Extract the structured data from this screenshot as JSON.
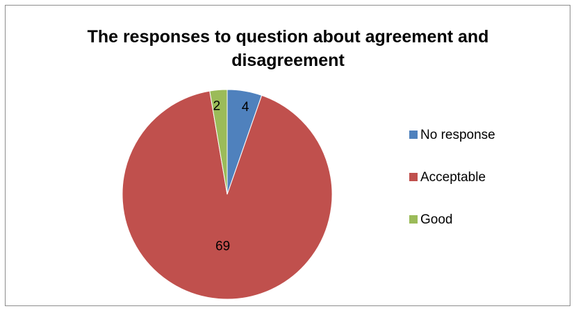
{
  "chart_data": {
    "type": "pie",
    "title": [
      "The responses to question about agreement and",
      "disagreement"
    ],
    "categories": [
      "No response",
      "Acceptable",
      "Good"
    ],
    "values": [
      4,
      69,
      2
    ],
    "data_labels": [
      "4",
      "69",
      "2"
    ],
    "colors": [
      "#4f81bd",
      "#c0504d",
      "#9bbb59"
    ],
    "legend_position": "right"
  }
}
